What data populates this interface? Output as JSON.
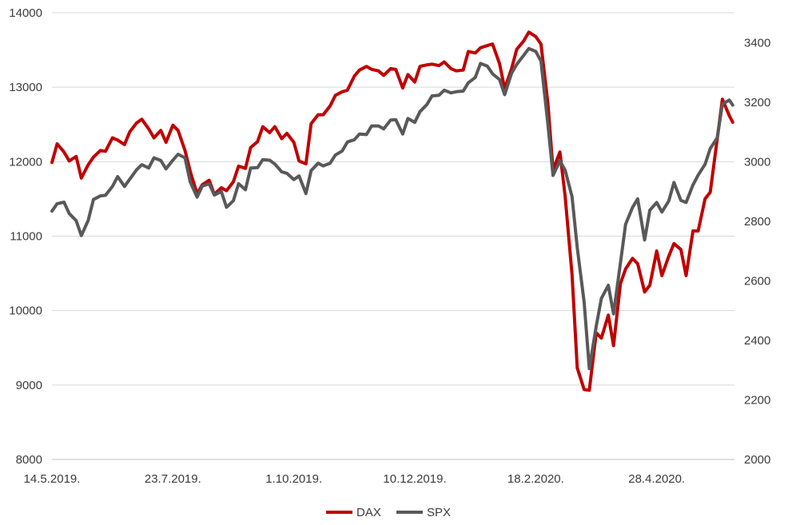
{
  "chart_data": {
    "type": "line",
    "title": "",
    "xlabel": "",
    "ylabel": "",
    "x_tick_labels": [
      "14.5.2019.",
      "23.7.2019.",
      "1.10.2019.",
      "10.12.2019.",
      "18.2.2020.",
      "28.4.2020."
    ],
    "y_left": {
      "lim": [
        8000,
        14000
      ],
      "ticks": [
        8000,
        9000,
        10000,
        11000,
        12000,
        13000,
        14000
      ]
    },
    "y_right": {
      "lim": [
        2000,
        3500
      ],
      "ticks": [
        2000,
        2200,
        2400,
        2600,
        2800,
        3000,
        3200,
        3400
      ]
    },
    "grid": true,
    "legend_position": "bottom",
    "series": [
      {
        "name": "DAX",
        "color": "#c00000",
        "axis": "left",
        "points": [
          [
            "2019-05-14",
            11990
          ],
          [
            "2019-05-17",
            12240
          ],
          [
            "2019-05-21",
            12130
          ],
          [
            "2019-05-24",
            12010
          ],
          [
            "2019-05-28",
            12070
          ],
          [
            "2019-05-31",
            11780
          ],
          [
            "2019-06-04",
            11960
          ],
          [
            "2019-06-07",
            12060
          ],
          [
            "2019-06-11",
            12150
          ],
          [
            "2019-06-14",
            12140
          ],
          [
            "2019-06-18",
            12320
          ],
          [
            "2019-06-21",
            12290
          ],
          [
            "2019-06-25",
            12230
          ],
          [
            "2019-06-28",
            12400
          ],
          [
            "2019-07-02",
            12520
          ],
          [
            "2019-07-05",
            12570
          ],
          [
            "2019-07-09",
            12440
          ],
          [
            "2019-07-12",
            12320
          ],
          [
            "2019-07-16",
            12420
          ],
          [
            "2019-07-19",
            12260
          ],
          [
            "2019-07-23",
            12490
          ],
          [
            "2019-07-26",
            12420
          ],
          [
            "2019-07-30",
            12150
          ],
          [
            "2019-08-02",
            11870
          ],
          [
            "2019-08-06",
            11570
          ],
          [
            "2019-08-09",
            11690
          ],
          [
            "2019-08-13",
            11750
          ],
          [
            "2019-08-16",
            11560
          ],
          [
            "2019-08-20",
            11650
          ],
          [
            "2019-08-23",
            11610
          ],
          [
            "2019-08-27",
            11730
          ],
          [
            "2019-08-30",
            11940
          ],
          [
            "2019-09-03",
            11910
          ],
          [
            "2019-09-06",
            12190
          ],
          [
            "2019-09-10",
            12270
          ],
          [
            "2019-09-13",
            12470
          ],
          [
            "2019-09-17",
            12390
          ],
          [
            "2019-09-20",
            12470
          ],
          [
            "2019-09-24",
            12310
          ],
          [
            "2019-09-27",
            12380
          ],
          [
            "2019-10-01",
            12260
          ],
          [
            "2019-10-04",
            12010
          ],
          [
            "2019-10-08",
            11970
          ],
          [
            "2019-10-11",
            12510
          ],
          [
            "2019-10-15",
            12630
          ],
          [
            "2019-10-18",
            12630
          ],
          [
            "2019-10-22",
            12750
          ],
          [
            "2019-10-25",
            12890
          ],
          [
            "2019-10-29",
            12940
          ],
          [
            "2019-11-01",
            12960
          ],
          [
            "2019-11-05",
            13150
          ],
          [
            "2019-11-08",
            13230
          ],
          [
            "2019-11-12",
            13280
          ],
          [
            "2019-11-15",
            13240
          ],
          [
            "2019-11-19",
            13220
          ],
          [
            "2019-11-22",
            13160
          ],
          [
            "2019-11-26",
            13250
          ],
          [
            "2019-11-29",
            13240
          ],
          [
            "2019-12-03",
            12990
          ],
          [
            "2019-12-06",
            13170
          ],
          [
            "2019-12-10",
            13070
          ],
          [
            "2019-12-13",
            13280
          ],
          [
            "2019-12-17",
            13300
          ],
          [
            "2019-12-20",
            13310
          ],
          [
            "2019-12-24",
            13290
          ],
          [
            "2019-12-27",
            13340
          ],
          [
            "2019-12-31",
            13250
          ],
          [
            "2020-01-03",
            13220
          ],
          [
            "2020-01-07",
            13230
          ],
          [
            "2020-01-10",
            13480
          ],
          [
            "2020-01-14",
            13460
          ],
          [
            "2020-01-17",
            13530
          ],
          [
            "2020-01-21",
            13560
          ],
          [
            "2020-01-24",
            13580
          ],
          [
            "2020-01-28",
            13320
          ],
          [
            "2020-01-31",
            12980
          ],
          [
            "2020-02-04",
            13250
          ],
          [
            "2020-02-07",
            13510
          ],
          [
            "2020-02-11",
            13620
          ],
          [
            "2020-02-14",
            13740
          ],
          [
            "2020-02-18",
            13680
          ],
          [
            "2020-02-21",
            13580
          ],
          [
            "2020-02-25",
            12790
          ],
          [
            "2020-02-28",
            11890
          ],
          [
            "2020-03-03",
            12130
          ],
          [
            "2020-03-06",
            11540
          ],
          [
            "2020-03-10",
            10480
          ],
          [
            "2020-03-13",
            9230
          ],
          [
            "2020-03-17",
            8940
          ],
          [
            "2020-03-20",
            8930
          ],
          [
            "2020-03-24",
            9700
          ],
          [
            "2020-03-27",
            9630
          ],
          [
            "2020-03-31",
            9940
          ],
          [
            "2020-04-03",
            9530
          ],
          [
            "2020-04-07",
            10360
          ],
          [
            "2020-04-10",
            10560
          ],
          [
            "2020-04-14",
            10700
          ],
          [
            "2020-04-17",
            10630
          ],
          [
            "2020-04-21",
            10250
          ],
          [
            "2020-04-24",
            10340
          ],
          [
            "2020-04-28",
            10800
          ],
          [
            "2020-05-01",
            10470
          ],
          [
            "2020-05-05",
            10730
          ],
          [
            "2020-05-08",
            10900
          ],
          [
            "2020-05-12",
            10820
          ],
          [
            "2020-05-15",
            10470
          ],
          [
            "2020-05-19",
            11070
          ],
          [
            "2020-05-22",
            11070
          ],
          [
            "2020-05-26",
            11500
          ],
          [
            "2020-05-29",
            11590
          ],
          [
            "2020-06-02",
            12300
          ],
          [
            "2020-06-05",
            12840
          ],
          [
            "2020-06-09",
            12620
          ],
          [
            "2020-06-11",
            12530
          ]
        ]
      },
      {
        "name": "SPX",
        "color": "#595959",
        "axis": "right",
        "points": [
          [
            "2019-05-14",
            2834
          ],
          [
            "2019-05-17",
            2859
          ],
          [
            "2019-05-21",
            2864
          ],
          [
            "2019-05-24",
            2826
          ],
          [
            "2019-05-28",
            2802
          ],
          [
            "2019-05-31",
            2752
          ],
          [
            "2019-06-04",
            2803
          ],
          [
            "2019-06-07",
            2873
          ],
          [
            "2019-06-11",
            2885
          ],
          [
            "2019-06-14",
            2887
          ],
          [
            "2019-06-18",
            2917
          ],
          [
            "2019-06-21",
            2950
          ],
          [
            "2019-06-25",
            2917
          ],
          [
            "2019-06-28",
            2941
          ],
          [
            "2019-07-02",
            2973
          ],
          [
            "2019-07-05",
            2990
          ],
          [
            "2019-07-09",
            2979
          ],
          [
            "2019-07-12",
            3013
          ],
          [
            "2019-07-16",
            3004
          ],
          [
            "2019-07-19",
            2976
          ],
          [
            "2019-07-23",
            3005
          ],
          [
            "2019-07-26",
            3025
          ],
          [
            "2019-07-30",
            3013
          ],
          [
            "2019-08-02",
            2932
          ],
          [
            "2019-08-06",
            2881
          ],
          [
            "2019-08-09",
            2918
          ],
          [
            "2019-08-13",
            2926
          ],
          [
            "2019-08-16",
            2888
          ],
          [
            "2019-08-20",
            2900
          ],
          [
            "2019-08-23",
            2847
          ],
          [
            "2019-08-27",
            2869
          ],
          [
            "2019-08-30",
            2926
          ],
          [
            "2019-09-03",
            2906
          ],
          [
            "2019-09-06",
            2979
          ],
          [
            "2019-09-10",
            2980
          ],
          [
            "2019-09-13",
            3007
          ],
          [
            "2019-09-17",
            3005
          ],
          [
            "2019-09-20",
            2992
          ],
          [
            "2019-09-24",
            2966
          ],
          [
            "2019-09-27",
            2961
          ],
          [
            "2019-10-01",
            2940
          ],
          [
            "2019-10-04",
            2952
          ],
          [
            "2019-10-08",
            2893
          ],
          [
            "2019-10-11",
            2970
          ],
          [
            "2019-10-15",
            2995
          ],
          [
            "2019-10-18",
            2986
          ],
          [
            "2019-10-22",
            2995
          ],
          [
            "2019-10-25",
            3022
          ],
          [
            "2019-10-29",
            3036
          ],
          [
            "2019-11-01",
            3066
          ],
          [
            "2019-11-05",
            3074
          ],
          [
            "2019-11-08",
            3093
          ],
          [
            "2019-11-12",
            3091
          ],
          [
            "2019-11-15",
            3120
          ],
          [
            "2019-11-19",
            3120
          ],
          [
            "2019-11-22",
            3110
          ],
          [
            "2019-11-26",
            3140
          ],
          [
            "2019-11-29",
            3141
          ],
          [
            "2019-12-03",
            3093
          ],
          [
            "2019-12-06",
            3145
          ],
          [
            "2019-12-10",
            3132
          ],
          [
            "2019-12-13",
            3168
          ],
          [
            "2019-12-17",
            3192
          ],
          [
            "2019-12-20",
            3221
          ],
          [
            "2019-12-24",
            3223
          ],
          [
            "2019-12-27",
            3240
          ],
          [
            "2019-12-31",
            3231
          ],
          [
            "2020-01-03",
            3235
          ],
          [
            "2020-01-07",
            3237
          ],
          [
            "2020-01-10",
            3265
          ],
          [
            "2020-01-14",
            3283
          ],
          [
            "2020-01-17",
            3330
          ],
          [
            "2020-01-21",
            3321
          ],
          [
            "2020-01-24",
            3295
          ],
          [
            "2020-01-28",
            3276
          ],
          [
            "2020-01-31",
            3225
          ],
          [
            "2020-02-04",
            3297
          ],
          [
            "2020-02-07",
            3327
          ],
          [
            "2020-02-11",
            3357
          ],
          [
            "2020-02-14",
            3380
          ],
          [
            "2020-02-18",
            3370
          ],
          [
            "2020-02-21",
            3338
          ],
          [
            "2020-02-25",
            3128
          ],
          [
            "2020-02-28",
            2954
          ],
          [
            "2020-03-03",
            3003
          ],
          [
            "2020-03-06",
            2972
          ],
          [
            "2020-03-10",
            2882
          ],
          [
            "2020-03-13",
            2711
          ],
          [
            "2020-03-17",
            2529
          ],
          [
            "2020-03-20",
            2305
          ],
          [
            "2020-03-24",
            2447
          ],
          [
            "2020-03-27",
            2541
          ],
          [
            "2020-03-31",
            2585
          ],
          [
            "2020-04-03",
            2489
          ],
          [
            "2020-04-07",
            2659
          ],
          [
            "2020-04-10",
            2790
          ],
          [
            "2020-04-14",
            2846
          ],
          [
            "2020-04-17",
            2875
          ],
          [
            "2020-04-21",
            2737
          ],
          [
            "2020-04-24",
            2837
          ],
          [
            "2020-04-28",
            2863
          ],
          [
            "2020-05-01",
            2831
          ],
          [
            "2020-05-05",
            2868
          ],
          [
            "2020-05-08",
            2930
          ],
          [
            "2020-05-12",
            2870
          ],
          [
            "2020-05-15",
            2863
          ],
          [
            "2020-05-19",
            2922
          ],
          [
            "2020-05-22",
            2955
          ],
          [
            "2020-05-26",
            2991
          ],
          [
            "2020-05-29",
            3044
          ],
          [
            "2020-06-02",
            3080
          ],
          [
            "2020-06-05",
            3193
          ],
          [
            "2020-06-09",
            3207
          ],
          [
            "2020-06-11",
            3190
          ]
        ]
      }
    ]
  }
}
